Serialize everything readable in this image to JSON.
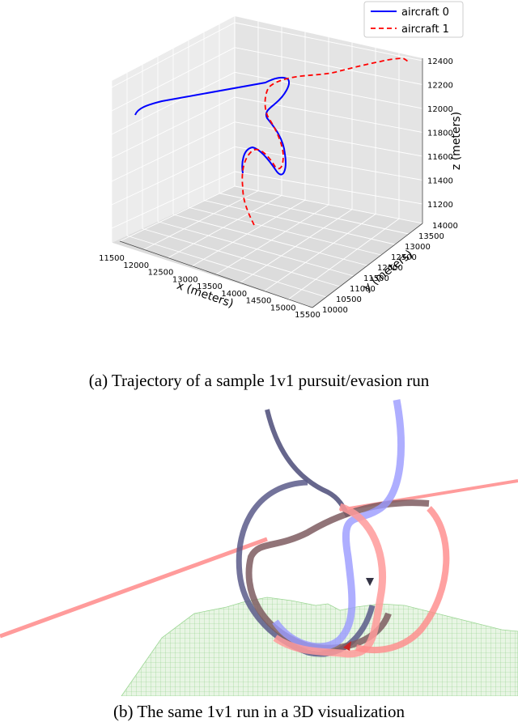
{
  "figure_a": {
    "caption": "(a) Trajectory of a sample 1v1 pursuit/evasion run",
    "chart_data": {
      "type": "line",
      "projection": "3d",
      "xlabel": "x (meters)",
      "ylabel": "y (meters)",
      "zlabel": "z (meters)",
      "xlim": [
        11500,
        15500
      ],
      "ylim": [
        10000,
        14000
      ],
      "zlim": [
        11200,
        12400
      ],
      "x_ticks": [
        "11500",
        "12000",
        "12500",
        "13000",
        "13500",
        "14000",
        "14500",
        "15000",
        "15500"
      ],
      "y_ticks": [
        "10000",
        "10500",
        "11000",
        "11500",
        "12000",
        "12500",
        "13000",
        "13500",
        "14000"
      ],
      "z_ticks": [
        "11200",
        "11400",
        "11600",
        "11800",
        "12000",
        "12200",
        "12400"
      ],
      "grid": true,
      "legend_position": "top-right",
      "legend": [
        "aircraft 0",
        "aircraft 1"
      ],
      "series_styles": [
        {
          "color": "#0000ff",
          "dash": "solid"
        },
        {
          "color": "#ff0000",
          "dash": "dashed"
        }
      ]
    }
  },
  "figure_b": {
    "caption": "(b) The same 1v1 run in a 3D visualization"
  }
}
